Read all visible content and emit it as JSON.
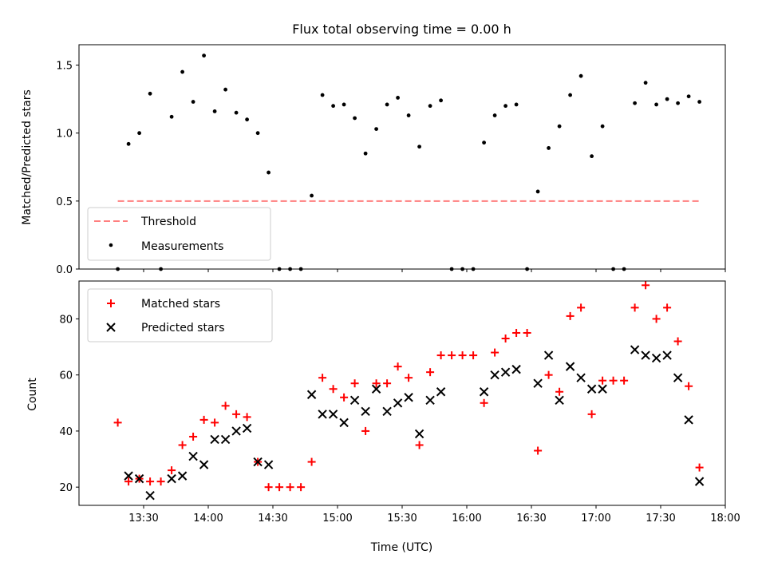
{
  "chart_data": [
    {
      "type": "scatter",
      "title": "Flux total observing time = 0.00 h",
      "xlabel": "",
      "ylabel": "Matched/Predicted stars",
      "ylim": [
        0,
        1.65
      ],
      "xlim": [
        "13:00",
        "18:00"
      ],
      "yticks": [
        0.0,
        0.5,
        1.0,
        1.5
      ],
      "ytick_labels": [
        "0.0",
        "0.5",
        "1.0",
        "1.5"
      ],
      "grid": false,
      "legend_placement": "lower-left",
      "series": [
        {
          "name": "Threshold",
          "kind": "dashed-line",
          "color": "#ff7f7f",
          "x": [
            "13:18",
            "17:48"
          ],
          "y": [
            0.5,
            0.5
          ]
        },
        {
          "name": "Measurements",
          "kind": "dot",
          "color": "#000000",
          "x": [
            "13:18",
            "13:23",
            "13:28",
            "13:33",
            "13:38",
            "13:43",
            "13:48",
            "13:53",
            "13:58",
            "14:03",
            "14:08",
            "14:13",
            "14:18",
            "14:23",
            "14:28",
            "14:33",
            "14:38",
            "14:43",
            "14:48",
            "14:53",
            "14:58",
            "15:03",
            "15:08",
            "15:13",
            "15:18",
            "15:23",
            "15:28",
            "15:33",
            "15:38",
            "15:43",
            "15:48",
            "15:53",
            "15:58",
            "16:03",
            "16:08",
            "16:13",
            "16:18",
            "16:23",
            "16:28",
            "16:33",
            "16:38",
            "16:43",
            "16:48",
            "16:53",
            "16:58",
            "17:03",
            "17:08",
            "17:13",
            "17:18",
            "17:23",
            "17:28",
            "17:33",
            "17:38",
            "17:43",
            "17:48"
          ],
          "y": [
            0.0,
            0.92,
            1.0,
            1.29,
            0.0,
            1.12,
            1.45,
            1.23,
            1.57,
            1.16,
            1.32,
            1.15,
            1.1,
            1.0,
            0.71,
            0.0,
            0.0,
            0.0,
            0.54,
            1.28,
            1.2,
            1.21,
            1.11,
            0.85,
            1.03,
            1.21,
            1.26,
            1.13,
            0.9,
            1.2,
            1.24,
            0.0,
            0.0,
            0.0,
            0.93,
            1.13,
            1.2,
            1.21,
            0.0,
            0.57,
            0.89,
            1.05,
            1.28,
            1.42,
            0.83,
            1.05,
            0.0,
            0.0,
            1.22,
            1.37,
            1.21,
            1.25,
            1.22,
            1.27,
            1.23
          ]
        }
      ]
    },
    {
      "type": "scatter",
      "title": "",
      "xlabel": "Time (UTC)",
      "ylabel": "Count",
      "ylim": [
        13.5,
        93.5
      ],
      "xlim": [
        "13:00",
        "18:00"
      ],
      "yticks": [
        20,
        40,
        60,
        80
      ],
      "ytick_labels": [
        "20",
        "40",
        "60",
        "80"
      ],
      "xtick_labels": [
        "13:30",
        "14:00",
        "14:30",
        "15:00",
        "15:30",
        "16:00",
        "16:30",
        "17:00",
        "17:30",
        "18:00"
      ],
      "grid": false,
      "legend_placement": "top-left",
      "series": [
        {
          "name": "Matched stars",
          "kind": "plus",
          "color": "#ff0000",
          "x": [
            "13:18",
            "13:23",
            "13:28",
            "13:33",
            "13:38",
            "13:43",
            "13:48",
            "13:53",
            "13:58",
            "14:03",
            "14:08",
            "14:13",
            "14:18",
            "14:23",
            "14:28",
            "14:33",
            "14:38",
            "14:43",
            "14:48",
            "14:53",
            "14:58",
            "15:03",
            "15:08",
            "15:13",
            "15:18",
            "15:23",
            "15:28",
            "15:33",
            "15:38",
            "15:43",
            "15:48",
            "15:53",
            "15:58",
            "16:03",
            "16:08",
            "16:13",
            "16:18",
            "16:23",
            "16:28",
            "16:33",
            "16:38",
            "16:43",
            "16:48",
            "16:53",
            "16:58",
            "17:03",
            "17:08",
            "17:13",
            "17:18",
            "17:23",
            "17:28",
            "17:33",
            "17:38",
            "17:43",
            "17:48"
          ],
          "y": [
            43,
            22,
            23,
            22,
            22,
            26,
            35,
            38,
            44,
            43,
            49,
            46,
            45,
            29,
            20,
            20,
            20,
            20,
            29,
            59,
            55,
            52,
            57,
            40,
            57,
            57,
            63,
            59,
            35,
            61,
            67,
            67,
            67,
            67,
            50,
            68,
            73,
            75,
            75,
            33,
            60,
            54,
            81,
            84,
            46,
            58,
            58,
            58,
            84,
            92,
            80,
            84,
            72,
            56,
            27
          ]
        },
        {
          "name": "Predicted stars",
          "kind": "x",
          "color": "#000000",
          "x": [
            "13:23",
            "13:28",
            "13:33",
            "13:43",
            "13:48",
            "13:53",
            "13:58",
            "14:03",
            "14:08",
            "14:13",
            "14:18",
            "14:23",
            "14:28",
            "14:48",
            "14:53",
            "14:58",
            "15:03",
            "15:08",
            "15:13",
            "15:18",
            "15:23",
            "15:28",
            "15:33",
            "15:38",
            "15:43",
            "15:48",
            "16:08",
            "16:13",
            "16:18",
            "16:23",
            "16:33",
            "16:38",
            "16:43",
            "16:48",
            "16:53",
            "16:58",
            "17:03",
            "17:18",
            "17:23",
            "17:28",
            "17:33",
            "17:38",
            "17:43",
            "17:48"
          ],
          "y": [
            24,
            23,
            17,
            23,
            24,
            31,
            28,
            37,
            37,
            40,
            41,
            29,
            28,
            53,
            46,
            46,
            43,
            51,
            47,
            55,
            47,
            50,
            52,
            39,
            51,
            54,
            54,
            60,
            61,
            62,
            57,
            67,
            51,
            63,
            59,
            55,
            55,
            69,
            67,
            66,
            67,
            59,
            44,
            22
          ]
        }
      ]
    }
  ]
}
